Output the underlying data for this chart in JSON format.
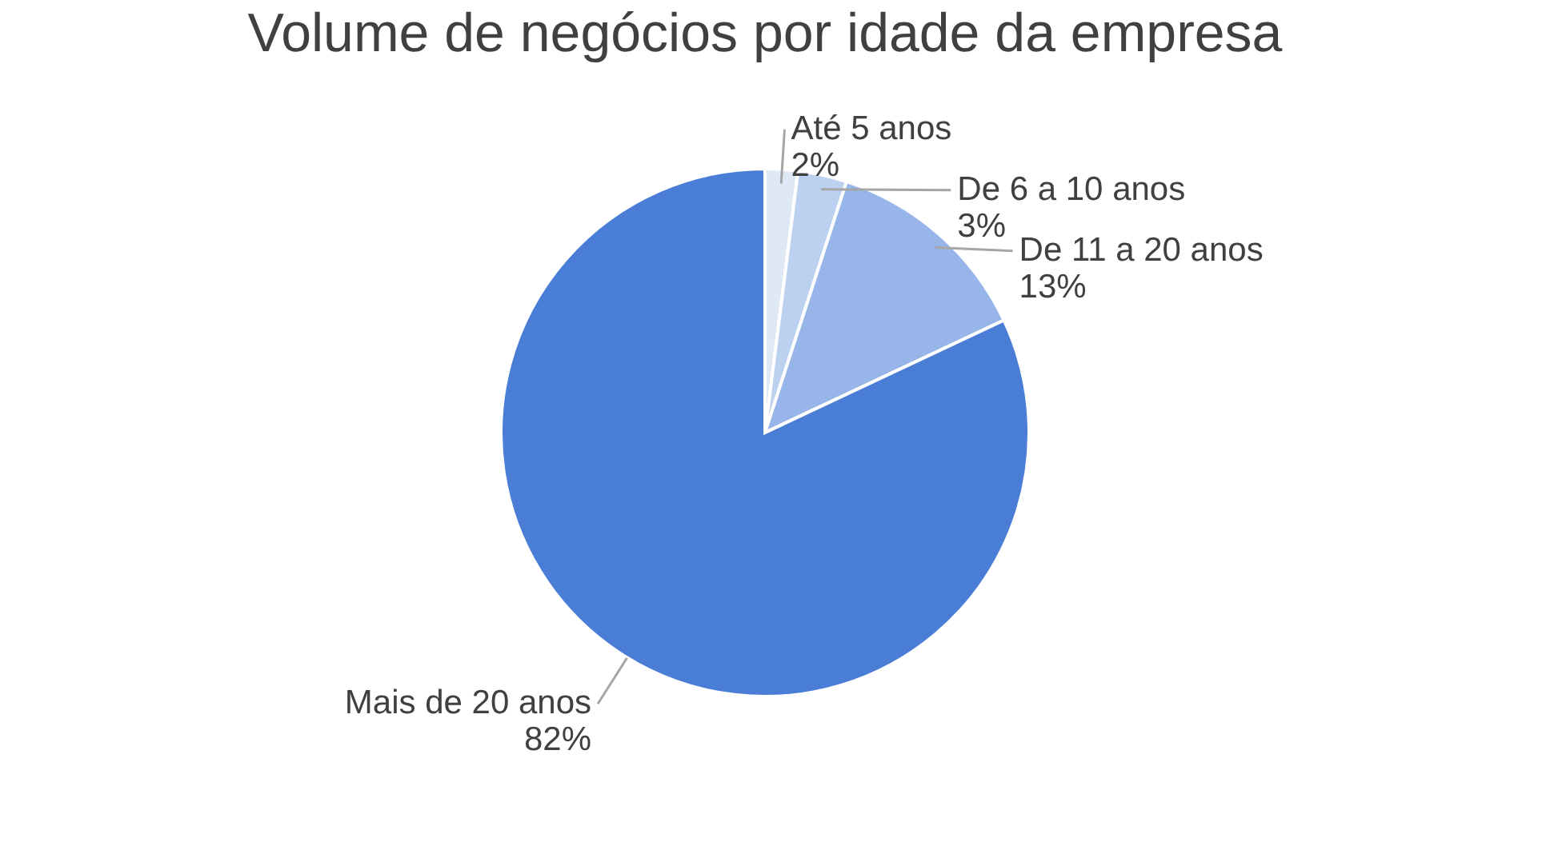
{
  "chart_data": {
    "type": "pie",
    "title": "Volume de negócios por idade da empresa",
    "categories": [
      "Até 5 anos",
      "De 6 a 10 anos",
      "De 11 a 20 anos",
      "Mais de 20 anos"
    ],
    "values": [
      2,
      3,
      13,
      82
    ],
    "value_labels": [
      "2%",
      "3%",
      "13%",
      "82%"
    ],
    "colors": [
      "#dfe8f5",
      "#bcd0ef",
      "#97b5e8",
      "#4a7dd6"
    ],
    "legend": false
  }
}
